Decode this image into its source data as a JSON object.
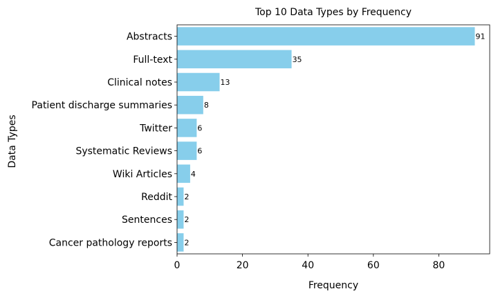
{
  "chart_data": {
    "type": "bar",
    "orientation": "horizontal",
    "title": "Top 10 Data Types by Frequency",
    "xlabel": "Frequency",
    "ylabel": "Data Types",
    "categories": [
      "Abstracts",
      "Full-text",
      "Clinical notes",
      "Patient discharge summaries",
      "Twitter",
      "Systematic Reviews",
      "Wiki Articles",
      "Reddit",
      "Sentences",
      "Cancer pathology reports"
    ],
    "values": [
      91,
      35,
      13,
      8,
      6,
      6,
      4,
      2,
      2,
      2
    ],
    "xlim": [
      0,
      95.55
    ],
    "xticks": [
      0,
      20,
      40,
      60,
      80
    ],
    "bar_color": "#87ceeb",
    "grid": false,
    "legend": "none"
  }
}
